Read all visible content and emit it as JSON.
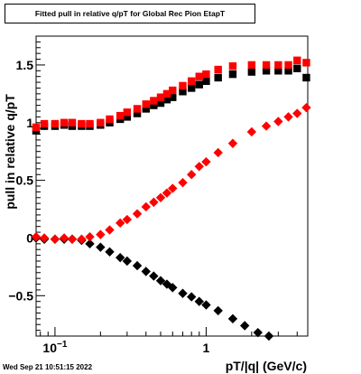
{
  "title": "Fitted pull in relative q/pT for Global Rec Pion EtapT",
  "timestamp": "Wed Sep 21 10:51:15 2022",
  "chart_data": {
    "type": "scatter",
    "xlabel": "pT/|q| (GeV/c)",
    "ylabel": "pull in relative q/pT",
    "xscale": "log",
    "xlim": [
      0.075,
      4.7
    ],
    "ylim": [
      -0.85,
      1.75
    ],
    "xtick_labels": [
      {
        "x": 0.1,
        "label": "10",
        "exp": "−1"
      },
      {
        "x": 1,
        "label": "1",
        "exp": ""
      }
    ],
    "ytick_labels": [
      {
        "y": -0.5,
        "label": "−0.5"
      },
      {
        "y": 0,
        "label": "0"
      },
      {
        "y": 0.5,
        "label": "0.5"
      },
      {
        "y": 1,
        "label": "1"
      },
      {
        "y": 1.5,
        "label": "1.5"
      }
    ],
    "grid": true,
    "series": [
      {
        "marker": "square",
        "color": "#000000",
        "points": [
          [
            0.075,
            0.93
          ],
          [
            0.085,
            0.97
          ],
          [
            0.1,
            0.97
          ],
          [
            0.115,
            0.98
          ],
          [
            0.13,
            0.97
          ],
          [
            0.15,
            0.97
          ],
          [
            0.17,
            0.97
          ],
          [
            0.2,
            0.98
          ],
          [
            0.23,
            1.0
          ],
          [
            0.27,
            1.03
          ],
          [
            0.3,
            1.05
          ],
          [
            0.35,
            1.08
          ],
          [
            0.4,
            1.12
          ],
          [
            0.45,
            1.15
          ],
          [
            0.5,
            1.17
          ],
          [
            0.55,
            1.2
          ],
          [
            0.6,
            1.22
          ],
          [
            0.7,
            1.27
          ],
          [
            0.8,
            1.3
          ],
          [
            0.9,
            1.33
          ],
          [
            1.0,
            1.36
          ],
          [
            1.2,
            1.39
          ],
          [
            1.5,
            1.42
          ],
          [
            2.0,
            1.44
          ],
          [
            2.5,
            1.45
          ],
          [
            3.0,
            1.45
          ],
          [
            3.5,
            1.45
          ],
          [
            4.0,
            1.47
          ],
          [
            4.6,
            1.39
          ]
        ]
      },
      {
        "marker": "square",
        "color": "#ff0000",
        "points": [
          [
            0.075,
            0.96
          ],
          [
            0.085,
            0.99
          ],
          [
            0.1,
            0.99
          ],
          [
            0.115,
            1.0
          ],
          [
            0.13,
            1.0
          ],
          [
            0.15,
            0.99
          ],
          [
            0.17,
            0.99
          ],
          [
            0.2,
            1.0
          ],
          [
            0.23,
            1.03
          ],
          [
            0.27,
            1.06
          ],
          [
            0.3,
            1.09
          ],
          [
            0.35,
            1.12
          ],
          [
            0.4,
            1.16
          ],
          [
            0.45,
            1.19
          ],
          [
            0.5,
            1.22
          ],
          [
            0.55,
            1.25
          ],
          [
            0.6,
            1.28
          ],
          [
            0.7,
            1.32
          ],
          [
            0.8,
            1.36
          ],
          [
            0.9,
            1.4
          ],
          [
            1.0,
            1.42
          ],
          [
            1.2,
            1.46
          ],
          [
            1.5,
            1.49
          ],
          [
            2.0,
            1.5
          ],
          [
            2.5,
            1.5
          ],
          [
            3.0,
            1.5
          ],
          [
            3.5,
            1.5
          ],
          [
            4.0,
            1.54
          ],
          [
            4.6,
            1.52
          ]
        ]
      },
      {
        "marker": "diamond",
        "color": "#000000",
        "points": [
          [
            0.075,
            0.0
          ],
          [
            0.085,
            -0.01
          ],
          [
            0.1,
            -0.01
          ],
          [
            0.115,
            -0.01
          ],
          [
            0.13,
            -0.01
          ],
          [
            0.15,
            -0.02
          ],
          [
            0.17,
            -0.05
          ],
          [
            0.2,
            -0.08
          ],
          [
            0.23,
            -0.12
          ],
          [
            0.27,
            -0.17
          ],
          [
            0.3,
            -0.2
          ],
          [
            0.35,
            -0.24
          ],
          [
            0.4,
            -0.29
          ],
          [
            0.45,
            -0.33
          ],
          [
            0.5,
            -0.37
          ],
          [
            0.55,
            -0.4
          ],
          [
            0.6,
            -0.43
          ],
          [
            0.7,
            -0.48
          ],
          [
            0.8,
            -0.51
          ],
          [
            0.9,
            -0.55
          ],
          [
            1.0,
            -0.58
          ],
          [
            1.2,
            -0.63
          ],
          [
            1.5,
            -0.7
          ],
          [
            1.8,
            -0.76
          ],
          [
            2.2,
            -0.82
          ],
          [
            2.6,
            -0.85
          ]
        ]
      },
      {
        "marker": "diamond",
        "color": "#ff0000",
        "points": [
          [
            0.075,
            0.01
          ],
          [
            0.085,
            0.0
          ],
          [
            0.1,
            -0.01
          ],
          [
            0.115,
            0.0
          ],
          [
            0.13,
            -0.01
          ],
          [
            0.15,
            -0.01
          ],
          [
            0.17,
            0.01
          ],
          [
            0.2,
            0.03
          ],
          [
            0.23,
            0.07
          ],
          [
            0.27,
            0.13
          ],
          [
            0.3,
            0.16
          ],
          [
            0.35,
            0.21
          ],
          [
            0.4,
            0.27
          ],
          [
            0.45,
            0.31
          ],
          [
            0.5,
            0.35
          ],
          [
            0.55,
            0.39
          ],
          [
            0.6,
            0.43
          ],
          [
            0.7,
            0.48
          ],
          [
            0.8,
            0.55
          ],
          [
            0.9,
            0.62
          ],
          [
            1.0,
            0.66
          ],
          [
            1.2,
            0.74
          ],
          [
            1.5,
            0.82
          ],
          [
            2.0,
            0.92
          ],
          [
            2.5,
            0.97
          ],
          [
            3.0,
            1.01
          ],
          [
            3.5,
            1.05
          ],
          [
            4.0,
            1.08
          ],
          [
            4.6,
            1.13
          ]
        ]
      }
    ]
  }
}
